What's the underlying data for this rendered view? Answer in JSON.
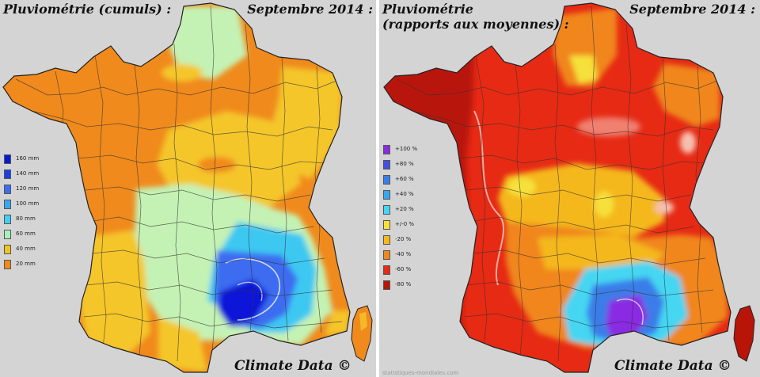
{
  "left": {
    "title": "Pluviométrie (cumuls) :",
    "date": "Septembre 2014 :",
    "credit": "Climate Data ©",
    "legend": [
      {
        "label": "160 mm",
        "color": "#0a18d8"
      },
      {
        "label": "140 mm",
        "color": "#1c3ee6"
      },
      {
        "label": "120 mm",
        "color": "#3c6cf0"
      },
      {
        "label": "100 mm",
        "color": "#39a6f2"
      },
      {
        "label": "80 mm",
        "color": "#3fd0f4"
      },
      {
        "label": "60 mm",
        "color": "#a8f0ba"
      },
      {
        "label": "40 mm",
        "color": "#f2c41e"
      },
      {
        "label": "20 mm",
        "color": "#f08a1c"
      }
    ]
  },
  "right": {
    "title_line1": "Pluviométrie",
    "title_line2": "(rapports aux moyennes) :",
    "date": "Septembre 2014 :",
    "credit": "Climate Data ©",
    "footer": "statistiques-mondiales.com",
    "legend": [
      {
        "label": "+100 %",
        "color": "#8a2be2"
      },
      {
        "label": "+80 %",
        "color": "#4650e0"
      },
      {
        "label": "+60 %",
        "color": "#3b7de8"
      },
      {
        "label": "+40 %",
        "color": "#37a8f0"
      },
      {
        "label": "+20 %",
        "color": "#44d6f2"
      },
      {
        "label": "+/-0 %",
        "color": "#f6e03a"
      },
      {
        "label": "-20 %",
        "color": "#f4b81e"
      },
      {
        "label": "-40 %",
        "color": "#f0861c"
      },
      {
        "label": "-60 %",
        "color": "#e62a14"
      },
      {
        "label": "-80 %",
        "color": "#b81408"
      }
    ]
  }
}
